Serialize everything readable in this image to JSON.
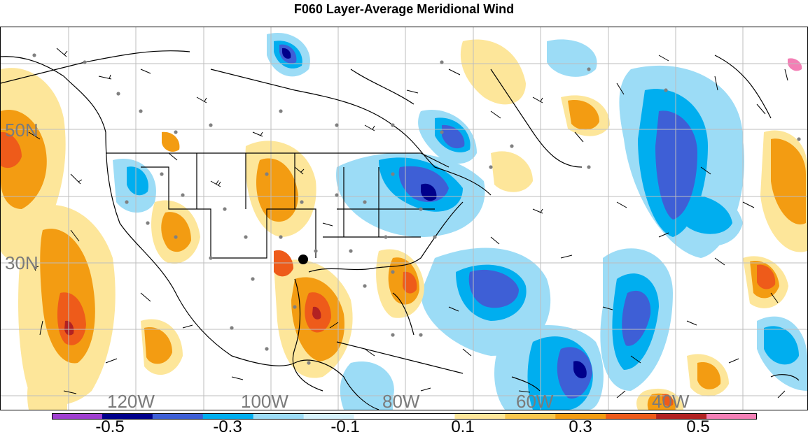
{
  "title": "F060 Layer-Average Meridional Wind",
  "lat_labels": [
    "50N",
    "30N"
  ],
  "lon_labels": [
    "120W",
    "100W",
    "80W",
    "60W",
    "40W"
  ],
  "colorbar": {
    "colors": [
      "#9f3fd0",
      "#00008b",
      "#3e5fd6",
      "#00aeef",
      "#9cdcf6",
      "#d6f2fb",
      "#ffffff",
      "#ffffff",
      "#fde69a",
      "#f9c74f",
      "#f39c12",
      "#ee5b1a",
      "#b22222",
      "#f37fb5"
    ],
    "tick_labels": [
      "-0.5",
      "-0.3",
      "-0.1",
      "0.1",
      "0.3",
      "0.5"
    ]
  },
  "marker_color": "#000000"
}
